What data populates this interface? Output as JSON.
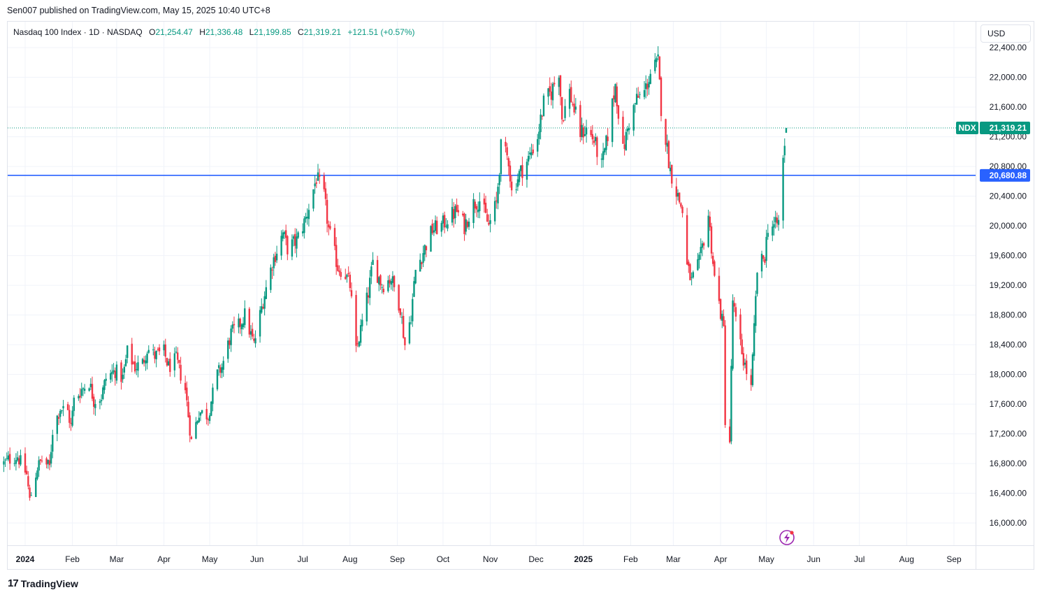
{
  "header": {
    "published": "Sen007 published on TradingView.com, May 15, 2025 10:40 UTC+8"
  },
  "legend": {
    "symbol": "Nasdaq 100 Index · 1D · NASDAQ",
    "open_label": "O",
    "open": "21,254.47",
    "high_label": "H",
    "high": "21,336.48",
    "low_label": "L",
    "low": "21,199.85",
    "close_label": "C",
    "close": "21,319.21",
    "change": "+121.51 (+0.57%)"
  },
  "currency": "USD",
  "footer": {
    "logo_text": "TradingView",
    "logo_mark": "17"
  },
  "icons": {
    "snapshot": "lightning-icon"
  },
  "colors": {
    "up": "#089981",
    "down": "#f23645",
    "hline": "#2962ff",
    "grid": "#f0f3fa"
  },
  "chart_data": {
    "type": "candlestick",
    "symbol": "NDX",
    "ylim": [
      15700,
      22750
    ],
    "y_ticks": [
      16000,
      16400,
      16800,
      17200,
      17600,
      18000,
      18400,
      18800,
      19200,
      19600,
      20000,
      20400,
      20800,
      21200,
      21600,
      22000,
      22400
    ],
    "y_tick_labels": [
      "16,000.00",
      "16,400.00",
      "16,800.00",
      "17,200.00",
      "17,600.00",
      "18,000.00",
      "18,400.00",
      "18,800.00",
      "19,200.00",
      "19,600.00",
      "20,000.00",
      "20,400.00",
      "20,800.00",
      "21,200.00",
      "21,600.00",
      "22,000.00",
      "22,400.00"
    ],
    "x_range": [
      "2023-12-18",
      "2025-09-30"
    ],
    "x_ticks": [
      {
        "date": "2024-01-01",
        "label": "2024",
        "bold": true
      },
      {
        "date": "2024-02-01",
        "label": "Feb"
      },
      {
        "date": "2024-03-01",
        "label": "Mar"
      },
      {
        "date": "2024-04-01",
        "label": "Apr"
      },
      {
        "date": "2024-05-01",
        "label": "May"
      },
      {
        "date": "2024-06-01",
        "label": "Jun"
      },
      {
        "date": "2024-07-01",
        "label": "Jul"
      },
      {
        "date": "2024-08-01",
        "label": "Aug"
      },
      {
        "date": "2024-09-01",
        "label": "Sep"
      },
      {
        "date": "2024-10-01",
        "label": "Oct"
      },
      {
        "date": "2024-11-01",
        "label": "Nov"
      },
      {
        "date": "2024-12-01",
        "label": "Dec"
      },
      {
        "date": "2025-01-01",
        "label": "2025",
        "bold": true
      },
      {
        "date": "2025-02-01",
        "label": "Feb"
      },
      {
        "date": "2025-03-01",
        "label": "Mar"
      },
      {
        "date": "2025-04-01",
        "label": "Apr"
      },
      {
        "date": "2025-05-01",
        "label": "May"
      },
      {
        "date": "2025-06-01",
        "label": "Jun"
      },
      {
        "date": "2025-07-01",
        "label": "Jul"
      },
      {
        "date": "2025-08-01",
        "label": "Aug"
      },
      {
        "date": "2025-09-01",
        "label": "Sep"
      }
    ],
    "closes": [
      [
        "2023-12-18",
        16800
      ],
      [
        "2023-12-21",
        16850
      ],
      [
        "2023-12-27",
        16900
      ],
      [
        "2024-01-02",
        16650
      ],
      [
        "2024-01-04",
        16300
      ],
      [
        "2024-01-09",
        16750
      ],
      [
        "2024-01-12",
        16850
      ],
      [
        "2024-01-17",
        16750
      ],
      [
        "2024-01-19",
        17250
      ],
      [
        "2024-01-24",
        17550
      ],
      [
        "2024-01-29",
        17500
      ],
      [
        "2024-01-31",
        17300
      ],
      [
        "2024-02-02",
        17650
      ],
      [
        "2024-02-07",
        17800
      ],
      [
        "2024-02-12",
        17900
      ],
      [
        "2024-02-15",
        17650
      ],
      [
        "2024-02-20",
        17700
      ],
      [
        "2024-02-23",
        17950
      ],
      [
        "2024-02-29",
        18050
      ],
      [
        "2024-03-05",
        17950
      ],
      [
        "2024-03-08",
        18300
      ],
      [
        "2024-03-13",
        18100
      ],
      [
        "2024-03-18",
        18150
      ],
      [
        "2024-03-21",
        18350
      ],
      [
        "2024-03-26",
        18250
      ],
      [
        "2024-04-01",
        18300
      ],
      [
        "2024-04-04",
        18100
      ],
      [
        "2024-04-09",
        18200
      ],
      [
        "2024-04-12",
        18000
      ],
      [
        "2024-04-15",
        17800
      ],
      [
        "2024-04-19",
        17100
      ],
      [
        "2024-04-24",
        17500
      ],
      [
        "2024-04-30",
        17450
      ],
      [
        "2024-05-02",
        17650
      ],
      [
        "2024-05-06",
        18000
      ],
      [
        "2024-05-09",
        18100
      ],
      [
        "2024-05-15",
        18550
      ],
      [
        "2024-05-20",
        18650
      ],
      [
        "2024-05-24",
        18800
      ],
      [
        "2024-05-30",
        18400
      ],
      [
        "2024-06-05",
        19000
      ],
      [
        "2024-06-11",
        19500
      ],
      [
        "2024-06-18",
        19900
      ],
      [
        "2024-06-21",
        19700
      ],
      [
        "2024-06-27",
        19800
      ],
      [
        "2024-07-03",
        20100
      ],
      [
        "2024-07-10",
        20650
      ],
      [
        "2024-07-15",
        20400
      ],
      [
        "2024-07-18",
        19950
      ],
      [
        "2024-07-24",
        19450
      ],
      [
        "2024-07-29",
        19350
      ],
      [
        "2024-08-01",
        19200
      ],
      [
        "2024-08-05",
        18300
      ],
      [
        "2024-08-08",
        18600
      ],
      [
        "2024-08-13",
        19100
      ],
      [
        "2024-08-16",
        19500
      ],
      [
        "2024-08-22",
        19200
      ],
      [
        "2024-08-28",
        19300
      ],
      [
        "2024-09-03",
        18900
      ],
      [
        "2024-09-06",
        18400
      ],
      [
        "2024-09-10",
        18800
      ],
      [
        "2024-09-13",
        19400
      ],
      [
        "2024-09-18",
        19650
      ],
      [
        "2024-09-24",
        19950
      ],
      [
        "2024-09-30",
        20000
      ],
      [
        "2024-10-04",
        20100
      ],
      [
        "2024-10-10",
        20200
      ],
      [
        "2024-10-15",
        20000
      ],
      [
        "2024-10-21",
        20300
      ],
      [
        "2024-10-25",
        20350
      ],
      [
        "2024-10-31",
        20000
      ],
      [
        "2024-11-05",
        20300
      ],
      [
        "2024-11-08",
        21050
      ],
      [
        "2024-11-13",
        20900
      ],
      [
        "2024-11-15",
        20450
      ],
      [
        "2024-11-20",
        20700
      ],
      [
        "2024-11-26",
        20900
      ],
      [
        "2024-12-02",
        21200
      ],
      [
        "2024-12-06",
        21650
      ],
      [
        "2024-12-11",
        21800
      ],
      [
        "2024-12-16",
        22100
      ],
      [
        "2024-12-18",
        21450
      ],
      [
        "2024-12-23",
        21800
      ],
      [
        "2024-12-30",
        21250
      ],
      [
        "2025-01-03",
        21300
      ],
      [
        "2025-01-08",
        21150
      ],
      [
        "2025-01-13",
        20800
      ],
      [
        "2025-01-16",
        21100
      ],
      [
        "2025-01-22",
        21900
      ],
      [
        "2025-01-27",
        21000
      ],
      [
        "2025-01-31",
        21400
      ],
      [
        "2025-02-05",
        21700
      ],
      [
        "2025-02-10",
        21800
      ],
      [
        "2025-02-14",
        22050
      ],
      [
        "2025-02-19",
        22200
      ],
      [
        "2025-02-21",
        21600
      ],
      [
        "2025-02-27",
        20750
      ],
      [
        "2025-03-04",
        20400
      ],
      [
        "2025-03-07",
        20200
      ],
      [
        "2025-03-10",
        19450
      ],
      [
        "2025-03-13",
        19250
      ],
      [
        "2025-03-18",
        19500
      ],
      [
        "2025-03-24",
        20150
      ],
      [
        "2025-03-28",
        19300
      ],
      [
        "2025-04-03",
        18600
      ],
      [
        "2025-04-04",
        17400
      ],
      [
        "2025-04-07",
        17100
      ],
      [
        "2025-04-09",
        19000
      ],
      [
        "2025-04-11",
        18700
      ],
      [
        "2025-04-16",
        18200
      ],
      [
        "2025-04-21",
        17800
      ],
      [
        "2025-04-25",
        19400
      ],
      [
        "2025-04-30",
        19600
      ],
      [
        "2025-05-02",
        20000
      ],
      [
        "2025-05-07",
        20000
      ],
      [
        "2025-05-09",
        20050
      ],
      [
        "2025-05-12",
        20900
      ],
      [
        "2025-05-14",
        21319.21
      ]
    ],
    "last_price": {
      "label": "NDX",
      "value": 21319.21,
      "value_label": "21,319.21"
    },
    "horizontal_line": {
      "value": 20680.88,
      "value_label": "20,680.88"
    }
  }
}
